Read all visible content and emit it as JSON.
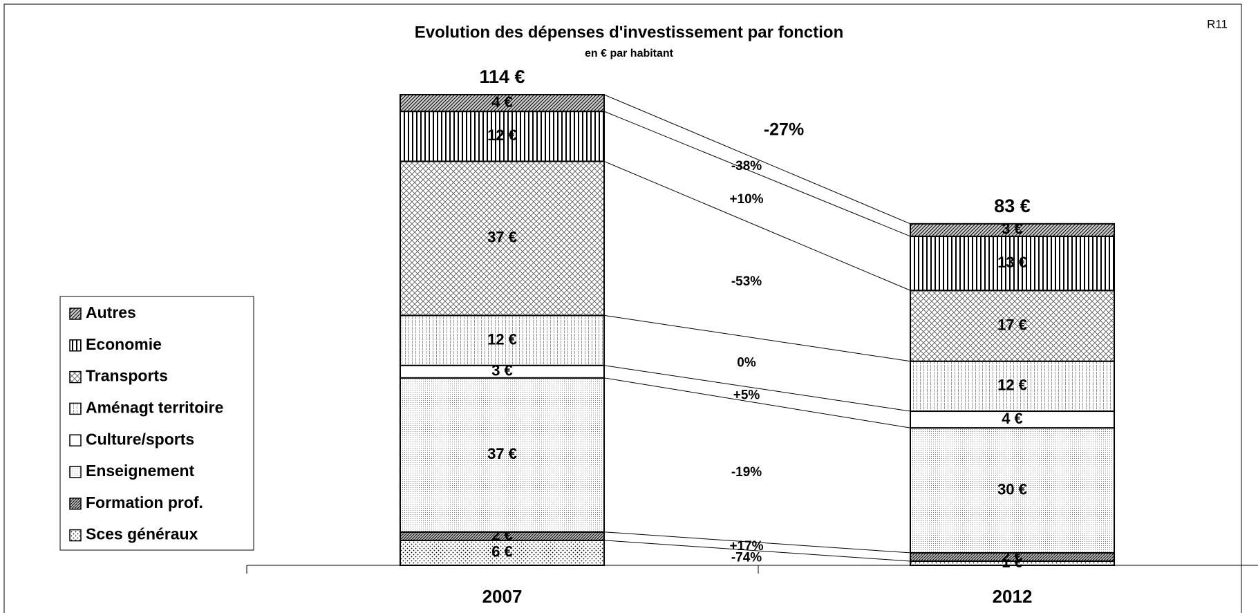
{
  "chart_data": {
    "type": "stacked-bar",
    "title": "Evolution des dépenses d'investissement par fonction",
    "subtitle": "en € par habitant",
    "corner_label": "R11",
    "categories": [
      "2007",
      "2012"
    ],
    "totals": [
      114,
      83
    ],
    "total_labels": [
      "114 €",
      "83 €"
    ],
    "total_change": "-27%",
    "series": [
      {
        "name": "Sces généraux",
        "pattern": "dots",
        "values": [
          6,
          1
        ],
        "value_labels": [
          "6 €",
          "1 €"
        ],
        "change": "-74%"
      },
      {
        "name": "Formation prof.",
        "pattern": "hatch-dense",
        "values": [
          2,
          2
        ],
        "value_labels": [
          "2 €",
          "2 €"
        ],
        "change": "+17%"
      },
      {
        "name": "Enseignement",
        "pattern": "fine-dots",
        "values": [
          37,
          30
        ],
        "value_labels": [
          "37 €",
          "30 €"
        ],
        "change": "-19%"
      },
      {
        "name": "Culture/sports",
        "pattern": "white",
        "values": [
          3,
          4
        ],
        "value_labels": [
          "3 €",
          "4 €"
        ],
        "change": "+5%"
      },
      {
        "name": "Aménagt territoire",
        "pattern": "grid-dots",
        "values": [
          12,
          12
        ],
        "value_labels": [
          "12 €",
          "12 €"
        ],
        "change": "0%"
      },
      {
        "name": "Transports",
        "pattern": "cross",
        "values": [
          37,
          17
        ],
        "value_labels": [
          "37 €",
          "17 €"
        ],
        "change": "-53%"
      },
      {
        "name": "Economie",
        "pattern": "vertical",
        "values": [
          12,
          13
        ],
        "value_labels": [
          "12 €",
          "13 €"
        ],
        "change": "+10%"
      },
      {
        "name": "Autres",
        "pattern": "diagonal",
        "values": [
          4,
          3
        ],
        "value_labels": [
          "4 €",
          "3 €"
        ],
        "change": "-38%"
      }
    ]
  }
}
